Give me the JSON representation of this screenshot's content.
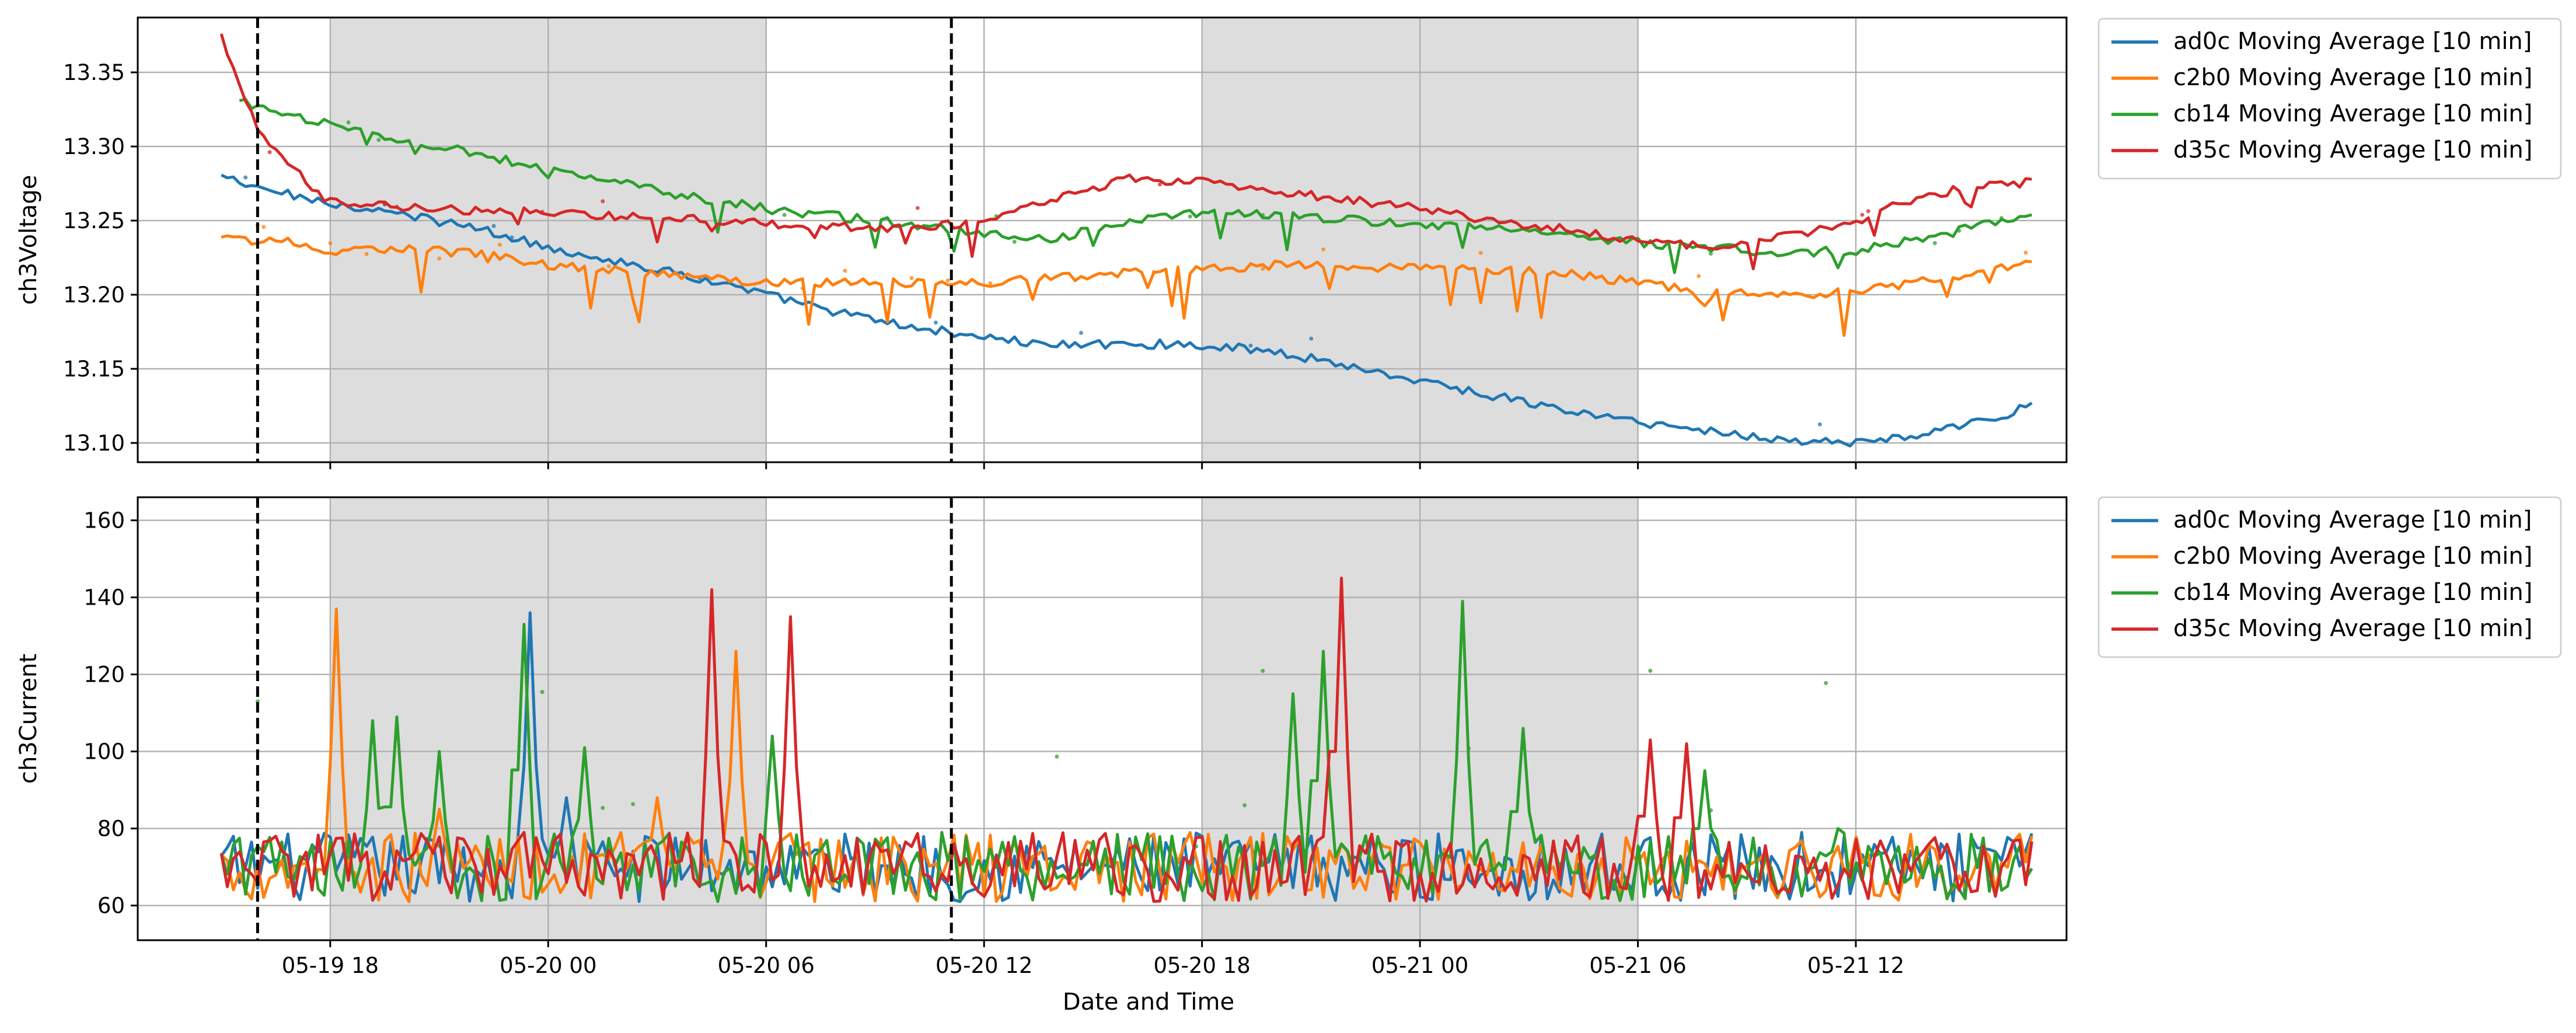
{
  "chart_data": {
    "type": "line",
    "x_axis": {
      "label": "Date and Time",
      "ticks": [
        "05-19 18",
        "05-20 00",
        "05-20 06",
        "05-20 12",
        "05-20 18",
        "05-21 00",
        "05-21 06",
        "05-21 12"
      ],
      "tick_hours": [
        0,
        6,
        12,
        18,
        24,
        30,
        36,
        42
      ],
      "range_hours": [
        -5.3,
        47.8
      ],
      "origin": "05-19 18:00"
    },
    "shaded_intervals": [
      {
        "start": "05-19 18:00",
        "end": "05-20 06:00"
      },
      {
        "start": "05-20 18:00",
        "end": "05-21 06:00"
      }
    ],
    "vertical_markers": [
      "05-19 16:00",
      "05-20 11:06"
    ],
    "legend_entries": [
      {
        "label": "ad0c Moving Average [10 min]",
        "color": "#1f77b4"
      },
      {
        "label": "c2b0 Moving Average [10 min]",
        "color": "#ff7f0e"
      },
      {
        "label": "cb14 Moving Average [10 min]",
        "color": "#2ca02c"
      },
      {
        "label": "d35c Moving Average [10 min]",
        "color": "#d62728"
      }
    ],
    "legend_position": "outside-right-top",
    "grid": true,
    "panels": [
      {
        "ylabel": "ch3Voltage",
        "ylim": [
          13.087,
          13.387
        ],
        "yticks": [
          "13.10",
          "13.15",
          "13.20",
          "13.25",
          "13.30",
          "13.35"
        ],
        "ytick_values": [
          13.1,
          13.15,
          13.2,
          13.25,
          13.3,
          13.35
        ],
        "series": [
          {
            "name": "ad0c",
            "color": "#1f77b4",
            "points": [
              [
                -3,
                13.28
              ],
              [
                -2,
                13.272
              ],
              [
                0,
                13.262
              ],
              [
                2,
                13.254
              ],
              [
                4,
                13.245
              ],
              [
                6,
                13.232
              ],
              [
                8,
                13.222
              ],
              [
                10,
                13.212
              ],
              [
                12,
                13.2
              ],
              [
                14,
                13.188
              ],
              [
                16,
                13.178
              ],
              [
                18,
                13.172
              ],
              [
                19,
                13.168
              ],
              [
                20,
                13.166
              ],
              [
                22,
                13.167
              ],
              [
                24,
                13.166
              ],
              [
                26,
                13.162
              ],
              [
                28,
                13.152
              ],
              [
                30,
                13.142
              ],
              [
                32,
                13.132
              ],
              [
                34,
                13.122
              ],
              [
                36,
                13.114
              ],
              [
                38,
                13.108
              ],
              [
                40,
                13.102
              ],
              [
                42,
                13.1
              ],
              [
                44,
                13.106
              ],
              [
                46,
                13.118
              ],
              [
                47,
                13.128
              ]
            ]
          },
          {
            "name": "c2b0",
            "color": "#ff7f0e",
            "points": [
              [
                -3,
                13.238
              ],
              [
                -1,
                13.235
              ],
              [
                0,
                13.228
              ],
              [
                1,
                13.232
              ],
              [
                4,
                13.228
              ],
              [
                6,
                13.22
              ],
              [
                9,
                13.214
              ],
              [
                12,
                13.208
              ],
              [
                15,
                13.208
              ],
              [
                18,
                13.208
              ],
              [
                22,
                13.215
              ],
              [
                26,
                13.22
              ],
              [
                30,
                13.218
              ],
              [
                34,
                13.215
              ],
              [
                36,
                13.208
              ],
              [
                38,
                13.202
              ],
              [
                40,
                13.2
              ],
              [
                42,
                13.202
              ],
              [
                44,
                13.21
              ],
              [
                46,
                13.218
              ],
              [
                47,
                13.222
              ]
            ]
          },
          {
            "name": "cb14",
            "color": "#2ca02c",
            "points": [
              [
                -2.5,
                13.33
              ],
              [
                0,
                13.315
              ],
              [
                3,
                13.3
              ],
              [
                6,
                13.285
              ],
              [
                9,
                13.27
              ],
              [
                12,
                13.258
              ],
              [
                15,
                13.25
              ],
              [
                18,
                13.242
              ],
              [
                20,
                13.238
              ],
              [
                22,
                13.25
              ],
              [
                24,
                13.256
              ],
              [
                27,
                13.252
              ],
              [
                30,
                13.248
              ],
              [
                33,
                13.242
              ],
              [
                36,
                13.235
              ],
              [
                38,
                13.232
              ],
              [
                40,
                13.228
              ],
              [
                42,
                13.23
              ],
              [
                44,
                13.238
              ],
              [
                46,
                13.25
              ],
              [
                47,
                13.252
              ]
            ]
          },
          {
            "name": "d35c",
            "color": "#d62728",
            "points": [
              [
                -3,
                13.375
              ],
              [
                -2,
                13.31
              ],
              [
                -1,
                13.285
              ],
              [
                0,
                13.262
              ],
              [
                3,
                13.258
              ],
              [
                6,
                13.255
              ],
              [
                9,
                13.252
              ],
              [
                12,
                13.248
              ],
              [
                15,
                13.245
              ],
              [
                18,
                13.248
              ],
              [
                19,
                13.258
              ],
              [
                20,
                13.266
              ],
              [
                22,
                13.278
              ],
              [
                24,
                13.276
              ],
              [
                26,
                13.27
              ],
              [
                28,
                13.264
              ],
              [
                30,
                13.258
              ],
              [
                32,
                13.25
              ],
              [
                34,
                13.244
              ],
              [
                36,
                13.236
              ],
              [
                38,
                13.232
              ],
              [
                40,
                13.24
              ],
              [
                42,
                13.248
              ],
              [
                43,
                13.26
              ],
              [
                45,
                13.272
              ],
              [
                47,
                13.276
              ]
            ]
          }
        ]
      },
      {
        "ylabel": "ch3Current",
        "ylim": [
          51,
          166
        ],
        "yticks": [
          "60",
          "80",
          "100",
          "120",
          "140",
          "160"
        ],
        "ytick_values": [
          60,
          80,
          100,
          120,
          140,
          160
        ],
        "baseline_range": [
          58,
          80
        ],
        "series": [
          {
            "name": "ad0c",
            "color": "#1f77b4",
            "spikes": [
              [
                5.5,
                136
              ],
              [
                6.5,
                88
              ]
            ]
          },
          {
            "name": "c2b0",
            "color": "#ff7f0e",
            "spikes": [
              [
                0.2,
                137
              ],
              [
                11.2,
                126
              ],
              [
                3.0,
                85
              ],
              [
                9.0,
                88
              ]
            ]
          },
          {
            "name": "cb14",
            "color": "#2ca02c",
            "spikes": [
              [
                1.2,
                108
              ],
              [
                1.8,
                109
              ],
              [
                3.0,
                100
              ],
              [
                5.3,
                133
              ],
              [
                7.0,
                101
              ],
              [
                12.2,
                104
              ],
              [
                26.5,
                115
              ],
              [
                27.3,
                126
              ],
              [
                31.2,
                139
              ],
              [
                32.8,
                106
              ],
              [
                37.8,
                95
              ],
              [
                41.5,
                80
              ]
            ]
          },
          {
            "name": "d35c",
            "color": "#d62728",
            "spikes": [
              [
                10.5,
                142
              ],
              [
                12.7,
                135
              ],
              [
                27.8,
                145
              ],
              [
                36.3,
                103
              ],
              [
                37.3,
                102
              ]
            ]
          }
        ]
      }
    ]
  }
}
